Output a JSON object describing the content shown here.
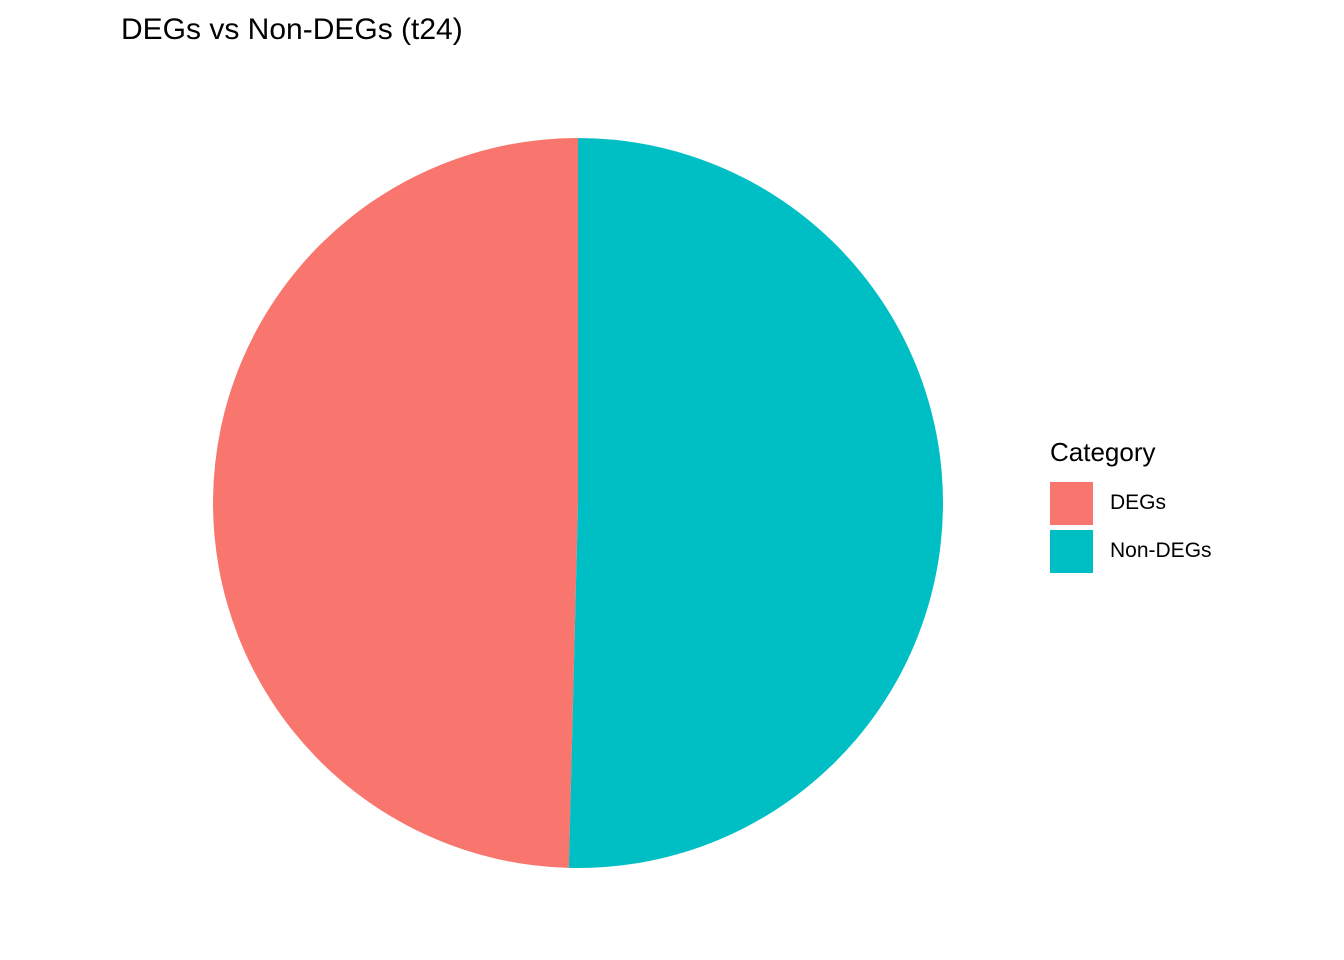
{
  "chart_data": {
    "type": "pie",
    "title": "DEGs vs Non-DEGs (t24)",
    "legend_title": "Category",
    "legend_position": "right",
    "slices": [
      {
        "label": "DEGs",
        "value": 49.6,
        "color": "#F8766D"
      },
      {
        "label": "Non-DEGs",
        "value": 50.4,
        "color": "#00BFC4"
      }
    ]
  }
}
